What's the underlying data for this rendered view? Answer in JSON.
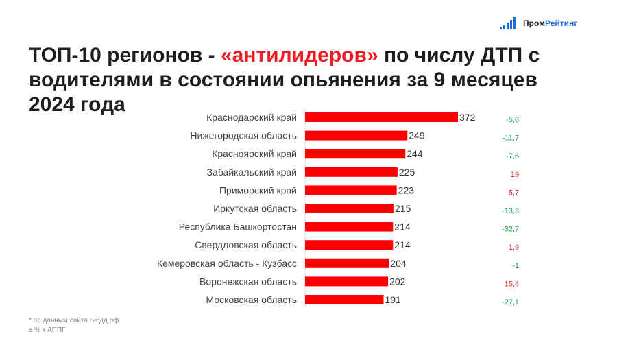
{
  "logo": {
    "text_a": "Пром",
    "text_b": "Рейтинг"
  },
  "title": {
    "part1": "ТОП-10 регионов - ",
    "highlight": "«антилидеров»",
    "part2": " по числу ДТП с водителями в состоянии опьянения за 9 месяцев 2024 года"
  },
  "colors": {
    "bar": "#ff0000",
    "positive": "#e02020",
    "negative": "#1aa64b"
  },
  "chart_data": {
    "type": "bar",
    "orientation": "horizontal",
    "categories": [
      "Краснодарский край",
      "Нижегородская область",
      "Красноярский край",
      "Забайкальский край",
      "Приморский край",
      "Иркутская область",
      "Республика Башкортостан",
      "Свердловская область",
      "Кемеровская область - Кузбасс",
      "Воронежская область",
      "Московская область"
    ],
    "values": [
      372,
      249,
      244,
      225,
      223,
      215,
      214,
      214,
      204,
      202,
      191
    ],
    "value_labels": [
      "372",
      "249",
      "244",
      "225",
      "223",
      "215",
      "214",
      "214",
      "204",
      "202",
      "191"
    ],
    "changes": [
      "-5,6",
      "-11,7",
      "-7,6",
      "19",
      "5,7",
      "-13,3",
      "-32,7",
      "1,9",
      "-1",
      "15,4",
      "-27,1"
    ],
    "change_signs": [
      -1,
      -1,
      -1,
      1,
      1,
      -1,
      -1,
      1,
      -1,
      1,
      -1
    ],
    "xlim": [
      0,
      372
    ]
  },
  "notes": {
    "source": "* по данным сайта гибдд.рф",
    "delta": "± % к АППГ"
  }
}
